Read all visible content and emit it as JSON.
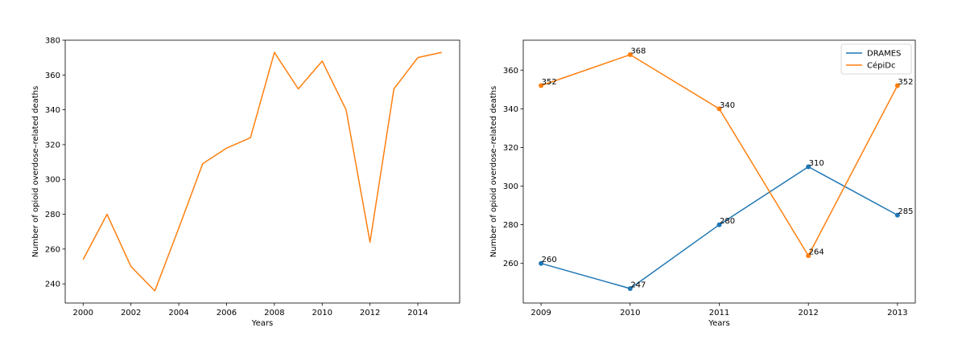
{
  "chart_data": [
    {
      "type": "line",
      "title": "",
      "xlabel": "Years",
      "ylabel": "Number of opioid overdose–related deaths",
      "xlim": [
        1999.25,
        2015.75
      ],
      "ylim": [
        229,
        380
      ],
      "xticks": [
        2000,
        2002,
        2004,
        2006,
        2008,
        2010,
        2012,
        2014
      ],
      "yticks": [
        240,
        260,
        280,
        300,
        320,
        340,
        360,
        380
      ],
      "grid": false,
      "series": [
        {
          "color": "#ff7f0e",
          "x": [
            2000,
            2001,
            2002,
            2003,
            2004,
            2005,
            2006,
            2007,
            2008,
            2009,
            2010,
            2011,
            2012,
            2013,
            2014,
            2015
          ],
          "y": [
            254,
            280,
            250,
            236,
            272,
            309,
            318,
            324,
            373,
            352,
            368,
            340,
            264,
            352,
            370,
            373
          ]
        }
      ]
    },
    {
      "type": "line",
      "title": "",
      "xlabel": "Years",
      "ylabel": "Number of opioid overdose–related deaths",
      "xlim": [
        2008.8,
        2013.2
      ],
      "ylim": [
        239.5,
        375.5
      ],
      "xticks": [
        2009,
        2010,
        2011,
        2012,
        2013
      ],
      "yticks": [
        260,
        280,
        300,
        320,
        340,
        360
      ],
      "grid": false,
      "legend_position": "top-right",
      "series": [
        {
          "name": "DRAMES",
          "color": "#1f77b4",
          "x": [
            2009,
            2010,
            2011,
            2012,
            2013
          ],
          "y": [
            260,
            247,
            280,
            310,
            285
          ],
          "labels": [
            "260",
            "247",
            "280",
            "310",
            "285"
          ]
        },
        {
          "name": "CépiDc",
          "color": "#ff7f0e",
          "x": [
            2009,
            2010,
            2011,
            2012,
            2013
          ],
          "y": [
            352,
            368,
            340,
            264,
            352
          ],
          "labels": [
            "352",
            "368",
            "340",
            "264",
            "352"
          ]
        }
      ]
    }
  ]
}
